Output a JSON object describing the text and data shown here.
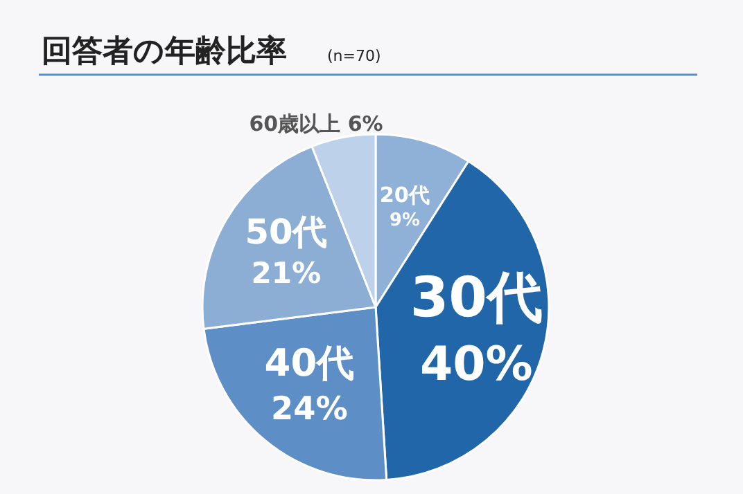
{
  "chart_data": {
    "type": "pie",
    "title": "回答者の年齢比率",
    "subtitle": "(n=70)",
    "categories": [
      "20代",
      "30代",
      "40代",
      "50代",
      "60歳以上"
    ],
    "values": [
      9,
      40,
      24,
      21,
      6
    ],
    "colors": [
      "#8fb1d8",
      "#2166a8",
      "#5e8ec6",
      "#8daed4",
      "#bdd1ea"
    ],
    "value_labels": [
      "9%",
      "40%",
      "24%",
      "21%",
      "6%"
    ]
  }
}
